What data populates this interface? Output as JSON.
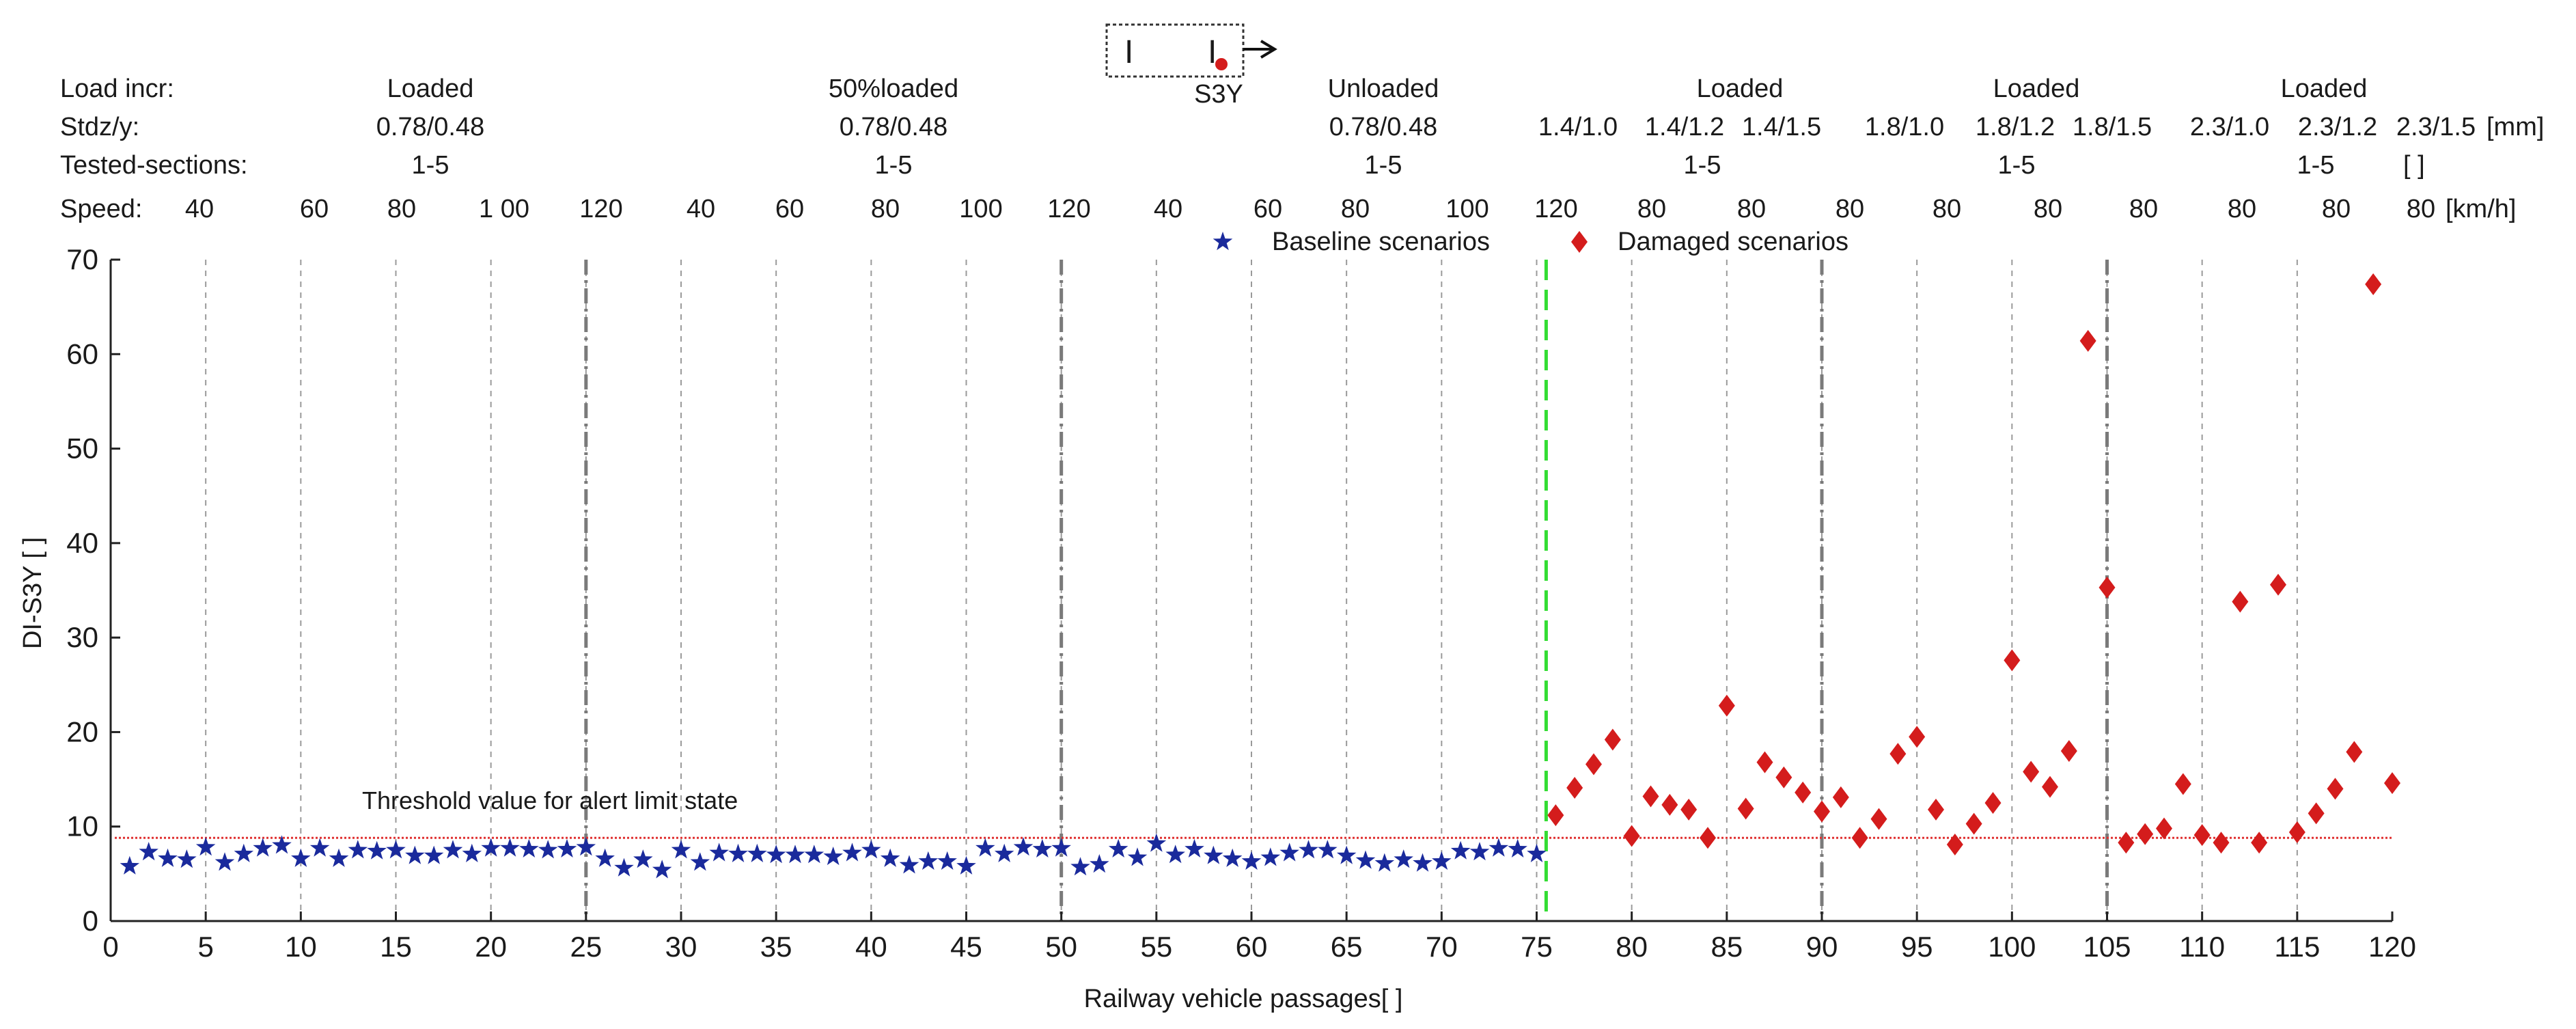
{
  "chart_data": {
    "type": "scatter",
    "title": "",
    "xlabel": "Railway vehicle passages[ ]",
    "ylabel": "DI-S3Y [ ]",
    "xlim": [
      0,
      120
    ],
    "ylim": [
      0,
      70
    ],
    "xticks": [
      0,
      5,
      10,
      15,
      20,
      25,
      30,
      35,
      40,
      45,
      50,
      55,
      60,
      65,
      70,
      75,
      80,
      85,
      90,
      95,
      100,
      105,
      110,
      115,
      120
    ],
    "yticks": [
      0,
      10,
      20,
      30,
      40,
      50,
      60,
      70
    ],
    "threshold": {
      "value": 8.8,
      "label": "Threshold value for alert limit state",
      "color": "#e03030"
    },
    "separator_x": 75.5,
    "group_dividers": [
      25,
      50,
      90,
      105
    ],
    "colors": {
      "baseline": "#1a2a9c",
      "damaged": "#d41c1c",
      "separator": "#33dd33",
      "grid": "#9a9a9a",
      "divider": "#7a7a7a"
    },
    "series": [
      {
        "name": "Baseline scenarios",
        "marker": "star",
        "x": [
          1,
          2,
          3,
          4,
          5,
          6,
          7,
          8,
          9,
          10,
          11,
          12,
          13,
          14,
          15,
          16,
          17,
          18,
          19,
          20,
          21,
          22,
          23,
          24,
          25,
          26,
          27,
          28,
          29,
          30,
          31,
          32,
          33,
          34,
          35,
          36,
          37,
          38,
          39,
          40,
          41,
          42,
          43,
          44,
          45,
          46,
          47,
          48,
          49,
          50,
          51,
          52,
          53,
          54,
          55,
          56,
          57,
          58,
          59,
          60,
          61,
          62,
          63,
          64,
          65,
          66,
          67,
          68,
          69,
          70,
          71,
          72,
          73,
          74,
          75
        ],
        "y": [
          5.8,
          7.3,
          6.6,
          6.5,
          7.8,
          6.2,
          7.1,
          7.7,
          8.0,
          6.6,
          7.7,
          6.6,
          7.5,
          7.4,
          7.5,
          6.9,
          6.9,
          7.5,
          7.1,
          7.7,
          7.7,
          7.6,
          7.5,
          7.6,
          7.8,
          6.6,
          5.6,
          6.5,
          5.4,
          7.5,
          6.2,
          7.2,
          7.1,
          7.1,
          7.0,
          7.0,
          7.0,
          6.8,
          7.2,
          7.5,
          6.6,
          5.9,
          6.3,
          6.3,
          5.8,
          7.7,
          7.1,
          7.8,
          7.6,
          7.7,
          5.7,
          6.0,
          7.6,
          6.7,
          8.2,
          7.0,
          7.6,
          6.9,
          6.6,
          6.3,
          6.7,
          7.2,
          7.5,
          7.5,
          6.9,
          6.4,
          6.1,
          6.5,
          6.1,
          6.3,
          7.4,
          7.3,
          7.7,
          7.6,
          7.1
        ]
      },
      {
        "name": "Damaged scenarios",
        "marker": "diamond",
        "x": [
          76,
          77,
          78,
          79,
          80,
          81,
          82,
          83,
          84,
          85,
          86,
          87,
          88,
          89,
          90,
          91,
          92,
          93,
          94,
          95,
          96,
          97,
          98,
          99,
          100,
          101,
          102,
          103,
          104,
          105,
          106,
          107,
          108,
          109,
          110,
          111,
          112,
          113,
          114,
          115,
          116,
          117,
          118,
          119,
          120
        ],
        "y": [
          11.2,
          14.1,
          16.6,
          19.2,
          9.0,
          13.2,
          12.3,
          11.8,
          8.8,
          22.8,
          11.9,
          16.8,
          15.2,
          13.6,
          11.6,
          13.1,
          8.8,
          10.8,
          17.7,
          19.5,
          11.8,
          8.1,
          10.3,
          12.5,
          27.6,
          15.8,
          14.2,
          18.0,
          61.4,
          35.3,
          8.3,
          9.2,
          9.8,
          14.5,
          9.1,
          8.3,
          33.8,
          8.3,
          35.6,
          9.4,
          11.4,
          14.0,
          17.9,
          67.4,
          14.6
        ]
      }
    ],
    "legend": {
      "position": "top-center",
      "entries": [
        "Baseline scenarios",
        "Damaged scenarios"
      ]
    },
    "header_table": {
      "row_labels": [
        "Load incr:",
        "Stdz/y:",
        "Tested-sections:",
        "Speed:"
      ],
      "load_increments": [
        "Loaded",
        "50%loaded",
        "Unloaded",
        "Loaded",
        "Loaded",
        "Loaded"
      ],
      "stdz": [
        "0.78/0.48",
        "0.78/0.48",
        "0.78/0.48",
        "1.4/1.0",
        "1.4/1.2",
        "1.4/1.5",
        "1.8/1.0",
        "1.8/1.2",
        "1.8/1.5",
        "2.3/1.0",
        "2.3/1.2",
        "2.3/1.5"
      ],
      "stdz_unit": "[mm]",
      "sections": [
        "1-5",
        "1-5",
        "1-5",
        "1-5",
        "1-5",
        "1-5"
      ],
      "sections_unit": "[ ]",
      "speeds": [
        "40",
        "60",
        "80",
        "1 00",
        "120",
        "40",
        "60",
        "80",
        "100",
        "120",
        "40",
        "60",
        "80",
        "100",
        "120",
        "80",
        "80",
        "80",
        "80",
        "80",
        "80",
        "80",
        "80",
        "80"
      ],
      "speed_unit": "[km/h]"
    },
    "sensor_diagram_label": "S3Y"
  }
}
